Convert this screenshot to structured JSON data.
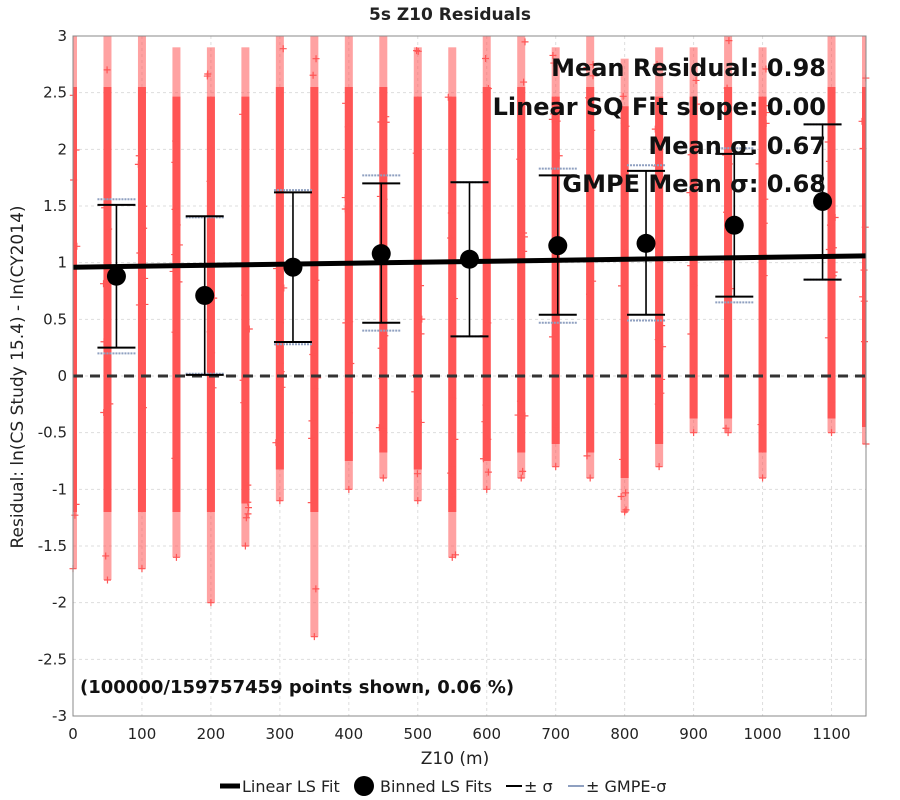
{
  "chart_data": {
    "type": "scatter",
    "title": "5s Z10 Residuals",
    "xlabel": "Z10 (m)",
    "ylabel": "Residual: ln(CS Study 15.4) - ln(CY2014)",
    "xlim": [
      0,
      1150
    ],
    "ylim": [
      -3,
      3
    ],
    "x_ticks": [
      0,
      100,
      200,
      300,
      400,
      500,
      600,
      700,
      800,
      900,
      1000,
      1100
    ],
    "y_ticks": [
      -3,
      -2.5,
      -2,
      -1.5,
      -1,
      -0.5,
      0,
      0.5,
      1,
      1.5,
      2,
      2.5,
      3
    ],
    "y_tick_labels": [
      "-3",
      "-2.5",
      "-2",
      "-1.5",
      "-1",
      "-0.5",
      "0",
      "0.5",
      "1",
      "1.5",
      "2",
      "2.5",
      "3"
    ],
    "grid": true,
    "legend_position": "bottom",
    "colors": {
      "scatter": "#ff5555",
      "fit": "#000000",
      "binned": "#000000",
      "sigma": "#000000",
      "gmpe_sigma": "#8fa0c0",
      "zero_line": "#333333"
    },
    "scatter_columns": [
      {
        "x": 0,
        "ymin": -1.7,
        "ymax": 3.0
      },
      {
        "x": 50,
        "ymin": -1.8,
        "ymax": 3.0
      },
      {
        "x": 100,
        "ymin": -1.7,
        "ymax": 3.0
      },
      {
        "x": 150,
        "ymin": -1.6,
        "ymax": 2.9
      },
      {
        "x": 200,
        "ymin": -2.0,
        "ymax": 2.9
      },
      {
        "x": 250,
        "ymin": -1.5,
        "ymax": 2.9
      },
      {
        "x": 300,
        "ymin": -1.1,
        "ymax": 3.0
      },
      {
        "x": 350,
        "ymin": -2.3,
        "ymax": 3.0
      },
      {
        "x": 400,
        "ymin": -1.0,
        "ymax": 3.0
      },
      {
        "x": 450,
        "ymin": -0.9,
        "ymax": 3.0
      },
      {
        "x": 500,
        "ymin": -1.1,
        "ymax": 2.9
      },
      {
        "x": 550,
        "ymin": -1.6,
        "ymax": 2.9
      },
      {
        "x": 600,
        "ymin": -1.0,
        "ymax": 3.0
      },
      {
        "x": 650,
        "ymin": -0.9,
        "ymax": 3.0
      },
      {
        "x": 700,
        "ymin": -0.8,
        "ymax": 2.9
      },
      {
        "x": 750,
        "ymin": -0.9,
        "ymax": 3.0
      },
      {
        "x": 800,
        "ymin": -1.2,
        "ymax": 2.8
      },
      {
        "x": 850,
        "ymin": -0.8,
        "ymax": 2.9
      },
      {
        "x": 900,
        "ymin": -0.5,
        "ymax": 2.9
      },
      {
        "x": 950,
        "ymin": -0.5,
        "ymax": 3.0
      },
      {
        "x": 1000,
        "ymin": -0.9,
        "ymax": 2.9
      },
      {
        "x": 1100,
        "ymin": -0.5,
        "ymax": 3.0
      },
      {
        "x": 1150,
        "ymin": -0.6,
        "ymax": 3.0
      }
    ],
    "linear_fit": {
      "x": [
        0,
        1150
      ],
      "y": [
        0.96,
        1.06
      ]
    },
    "binned_fits": [
      {
        "x": 63,
        "mean": 0.88,
        "sigma_low": 0.25,
        "sigma_high": 1.51,
        "gmpe_low": 0.2,
        "gmpe_high": 1.56
      },
      {
        "x": 191,
        "mean": 0.71,
        "sigma_low": 0.01,
        "sigma_high": 1.41,
        "gmpe_low": 0.02,
        "gmpe_high": 1.4
      },
      {
        "x": 319,
        "mean": 0.96,
        "sigma_low": 0.3,
        "sigma_high": 1.62,
        "gmpe_low": 0.28,
        "gmpe_high": 1.64
      },
      {
        "x": 447,
        "mean": 1.08,
        "sigma_low": 0.47,
        "sigma_high": 1.7,
        "gmpe_low": 0.4,
        "gmpe_high": 1.77
      },
      {
        "x": 575,
        "mean": 1.03,
        "sigma_low": 0.35,
        "sigma_high": 1.71,
        "gmpe_low": 0.35,
        "gmpe_high": 1.71
      },
      {
        "x": 703,
        "mean": 1.15,
        "sigma_low": 0.54,
        "sigma_high": 1.77,
        "gmpe_low": 0.47,
        "gmpe_high": 1.83
      },
      {
        "x": 831,
        "mean": 1.17,
        "sigma_low": 0.54,
        "sigma_high": 1.81,
        "gmpe_low": 0.49,
        "gmpe_high": 1.86
      },
      {
        "x": 959,
        "mean": 1.33,
        "sigma_low": 0.7,
        "sigma_high": 1.96,
        "gmpe_low": 0.65,
        "gmpe_high": 2.01
      },
      {
        "x": 1087,
        "mean": 1.54,
        "sigma_low": 0.85,
        "sigma_high": 2.22,
        "gmpe_low": 0.85,
        "gmpe_high": 2.22
      }
    ],
    "annotations": {
      "mean_residual": "Mean Residual: 0.98",
      "fit_slope": "Linear SQ Fit slope: 0.00",
      "mean_sigma": "Mean σ: 0.67",
      "gmpe_mean_sigma": "GMPE Mean σ: 0.68",
      "points_shown": "(100000/159757459 points shown, 0.06 %)"
    },
    "legend": [
      {
        "key": "fit",
        "label": "Linear LS Fit"
      },
      {
        "key": "binned",
        "label": "Binned LS Fits"
      },
      {
        "key": "sigma",
        "label": "± σ"
      },
      {
        "key": "gmpe",
        "label": "± GMPE-σ"
      }
    ]
  }
}
